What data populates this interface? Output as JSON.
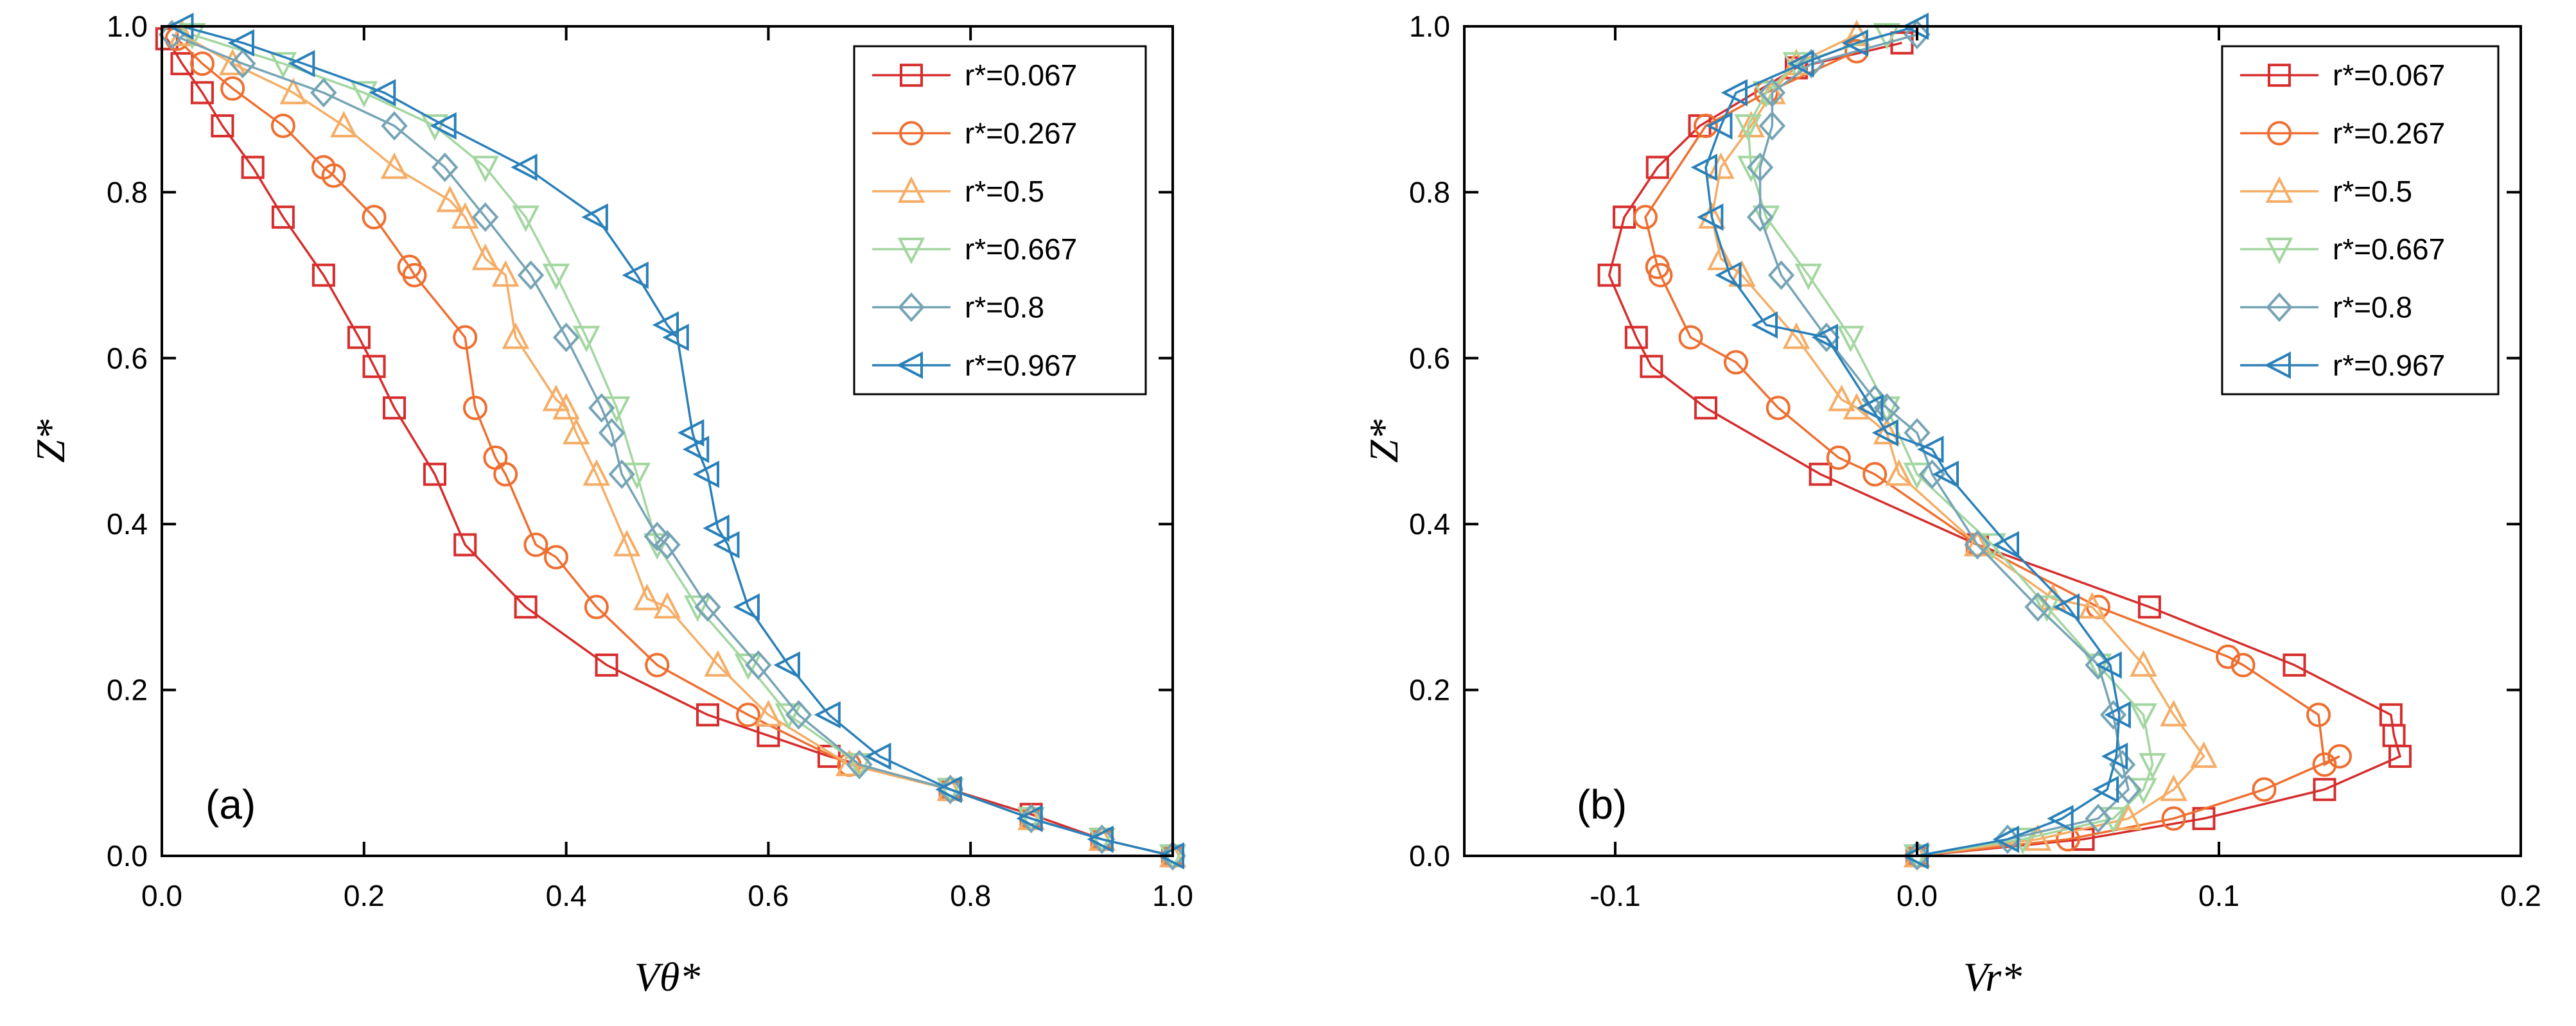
{
  "chart_data": [
    {
      "type": "line",
      "panel_label": "(a)",
      "xlabel": "Vθ*",
      "ylabel": "Z*",
      "xlim": [
        0.0,
        1.0
      ],
      "ylim": [
        0.0,
        1.0
      ],
      "xticks": [
        "0.0",
        "0.2",
        "0.4",
        "0.6",
        "0.8",
        "1.0"
      ],
      "yticks": [
        "0.0",
        "0.2",
        "0.4",
        "0.6",
        "0.8",
        "1.0"
      ],
      "grid": false,
      "legend_position": "top-right",
      "series": [
        {
          "name": "r*=0.067",
          "color": "#d62d2d",
          "marker": "square",
          "x": [
            1.0,
            0.93,
            0.86,
            0.78,
            0.66,
            0.6,
            0.54,
            0.44,
            0.36,
            0.3,
            0.27,
            0.23,
            0.21,
            0.195,
            0.16,
            0.12,
            0.09,
            0.06,
            0.04,
            0.02,
            0.005
          ],
          "y": [
            0.0,
            0.02,
            0.05,
            0.08,
            0.12,
            0.145,
            0.17,
            0.23,
            0.3,
            0.375,
            0.46,
            0.54,
            0.59,
            0.625,
            0.7,
            0.77,
            0.83,
            0.88,
            0.92,
            0.955,
            0.985
          ]
        },
        {
          "name": "r*=0.267",
          "color": "#ee6f31",
          "marker": "circle",
          "x": [
            1.0,
            0.93,
            0.86,
            0.78,
            0.68,
            0.58,
            0.49,
            0.43,
            0.39,
            0.37,
            0.34,
            0.33,
            0.31,
            0.3,
            0.25,
            0.245,
            0.21,
            0.17,
            0.16,
            0.12,
            0.07,
            0.04,
            0.015
          ],
          "y": [
            0.0,
            0.02,
            0.045,
            0.08,
            0.11,
            0.17,
            0.23,
            0.3,
            0.36,
            0.375,
            0.46,
            0.48,
            0.54,
            0.625,
            0.7,
            0.71,
            0.77,
            0.82,
            0.83,
            0.88,
            0.925,
            0.955,
            0.985
          ]
        },
        {
          "name": "r*=0.5",
          "color": "#f5ad66",
          "marker": "triangle-up",
          "x": [
            1.0,
            0.93,
            0.86,
            0.78,
            0.68,
            0.6,
            0.55,
            0.5,
            0.48,
            0.46,
            0.43,
            0.41,
            0.4,
            0.39,
            0.35,
            0.34,
            0.32,
            0.3,
            0.285,
            0.23,
            0.18,
            0.13,
            0.07,
            0.02
          ],
          "y": [
            0.0,
            0.02,
            0.045,
            0.08,
            0.11,
            0.17,
            0.23,
            0.3,
            0.31,
            0.375,
            0.46,
            0.51,
            0.54,
            0.55,
            0.625,
            0.7,
            0.72,
            0.77,
            0.79,
            0.83,
            0.88,
            0.92,
            0.955,
            0.99
          ]
        },
        {
          "name": "r*=0.667",
          "color": "#a3d6a0",
          "marker": "triangle-down",
          "x": [
            1.0,
            0.93,
            0.86,
            0.78,
            0.69,
            0.62,
            0.58,
            0.53,
            0.49,
            0.47,
            0.45,
            0.42,
            0.39,
            0.36,
            0.32,
            0.27,
            0.2,
            0.12,
            0.03
          ],
          "y": [
            0.0,
            0.02,
            0.045,
            0.08,
            0.11,
            0.17,
            0.23,
            0.3,
            0.375,
            0.46,
            0.54,
            0.625,
            0.7,
            0.77,
            0.83,
            0.88,
            0.92,
            0.955,
            0.99
          ]
        },
        {
          "name": "r*=0.8",
          "color": "#76a4b5",
          "marker": "diamond",
          "x": [
            1.0,
            0.93,
            0.86,
            0.78,
            0.69,
            0.63,
            0.59,
            0.54,
            0.5,
            0.49,
            0.455,
            0.445,
            0.435,
            0.4,
            0.365,
            0.32,
            0.28,
            0.23,
            0.16,
            0.08,
            0.01
          ],
          "y": [
            0.0,
            0.02,
            0.045,
            0.08,
            0.11,
            0.17,
            0.23,
            0.3,
            0.375,
            0.385,
            0.46,
            0.51,
            0.54,
            0.625,
            0.7,
            0.77,
            0.83,
            0.88,
            0.92,
            0.955,
            0.99
          ]
        },
        {
          "name": "r*=0.967",
          "color": "#2a80b9",
          "marker": "triangle-left",
          "x": [
            1.0,
            0.93,
            0.86,
            0.78,
            0.71,
            0.66,
            0.62,
            0.58,
            0.56,
            0.55,
            0.54,
            0.53,
            0.525,
            0.51,
            0.5,
            0.47,
            0.43,
            0.36,
            0.28,
            0.22,
            0.14,
            0.08,
            0.02
          ],
          "y": [
            0.0,
            0.02,
            0.045,
            0.08,
            0.12,
            0.17,
            0.23,
            0.3,
            0.375,
            0.395,
            0.46,
            0.49,
            0.51,
            0.625,
            0.64,
            0.7,
            0.77,
            0.83,
            0.88,
            0.92,
            0.955,
            0.98,
            1.0
          ]
        }
      ]
    },
    {
      "type": "line",
      "panel_label": "(b)",
      "xlabel": "Vr*",
      "ylabel": "Z*",
      "xlim": [
        -0.15,
        0.2
      ],
      "ylim": [
        0.0,
        1.0
      ],
      "xticks": [
        "-0.1",
        "0.0",
        "0.1",
        "0.2"
      ],
      "yticks": [
        "0.0",
        "0.2",
        "0.4",
        "0.6",
        "0.8",
        "1.0"
      ],
      "grid": false,
      "legend_position": "top-right",
      "series": [
        {
          "name": "r*=0.067",
          "color": "#d62d2d",
          "marker": "square",
          "x": [
            0.0,
            0.055,
            0.095,
            0.135,
            0.16,
            0.158,
            0.157,
            0.125,
            0.077,
            0.02,
            -0.032,
            -0.07,
            -0.088,
            -0.093,
            -0.102,
            -0.097,
            -0.086,
            -0.072,
            -0.04,
            -0.005
          ],
          "y": [
            0.0,
            0.02,
            0.045,
            0.08,
            0.12,
            0.145,
            0.17,
            0.23,
            0.3,
            0.375,
            0.46,
            0.54,
            0.59,
            0.625,
            0.7,
            0.77,
            0.83,
            0.88,
            0.95,
            0.98
          ]
        },
        {
          "name": "r*=0.267",
          "color": "#ee6f31",
          "marker": "circle",
          "x": [
            0.0,
            0.05,
            0.085,
            0.115,
            0.14,
            0.135,
            0.133,
            0.108,
            0.103,
            0.06,
            0.02,
            -0.014,
            -0.026,
            -0.046,
            -0.06,
            -0.075,
            -0.085,
            -0.086,
            -0.09,
            -0.07,
            -0.05,
            -0.02
          ],
          "y": [
            0.0,
            0.02,
            0.045,
            0.08,
            0.12,
            0.11,
            0.17,
            0.23,
            0.24,
            0.3,
            0.375,
            0.46,
            0.48,
            0.54,
            0.595,
            0.625,
            0.7,
            0.71,
            0.77,
            0.88,
            0.92,
            0.97
          ]
        },
        {
          "name": "r*=0.5",
          "color": "#f5ad66",
          "marker": "triangle-up",
          "x": [
            0.0,
            0.04,
            0.07,
            0.085,
            0.095,
            0.085,
            0.075,
            0.058,
            0.045,
            0.02,
            -0.006,
            -0.01,
            -0.02,
            -0.025,
            -0.04,
            -0.058,
            -0.065,
            -0.068,
            -0.065,
            -0.055,
            -0.048,
            -0.04,
            -0.02
          ],
          "y": [
            0.0,
            0.02,
            0.045,
            0.08,
            0.12,
            0.17,
            0.23,
            0.3,
            0.31,
            0.375,
            0.46,
            0.51,
            0.54,
            0.55,
            0.625,
            0.7,
            0.72,
            0.77,
            0.83,
            0.88,
            0.92,
            0.955,
            0.99
          ]
        },
        {
          "name": "r*=0.667",
          "color": "#a3d6a0",
          "marker": "triangle-down",
          "x": [
            0.0,
            0.035,
            0.065,
            0.075,
            0.078,
            0.075,
            0.06,
            0.043,
            0.025,
            0.0,
            -0.01,
            -0.022,
            -0.036,
            -0.05,
            -0.055,
            -0.056,
            -0.05,
            -0.04,
            -0.01
          ],
          "y": [
            0.0,
            0.02,
            0.045,
            0.08,
            0.11,
            0.17,
            0.23,
            0.3,
            0.375,
            0.46,
            0.54,
            0.625,
            0.7,
            0.77,
            0.83,
            0.88,
            0.92,
            0.955,
            0.99
          ]
        },
        {
          "name": "r*=0.8",
          "color": "#76a4b5",
          "marker": "diamond",
          "x": [
            0.0,
            0.03,
            0.06,
            0.07,
            0.068,
            0.065,
            0.06,
            0.04,
            0.02,
            0.005,
            0.0,
            -0.01,
            -0.014,
            -0.03,
            -0.045,
            -0.052,
            -0.052,
            -0.048,
            -0.048,
            -0.035,
            0.0
          ],
          "y": [
            0.0,
            0.02,
            0.045,
            0.08,
            0.11,
            0.17,
            0.23,
            0.3,
            0.375,
            0.46,
            0.51,
            0.54,
            0.55,
            0.625,
            0.7,
            0.77,
            0.83,
            0.88,
            0.92,
            0.955,
            0.99
          ]
        },
        {
          "name": "r*=0.967",
          "color": "#2a80b9",
          "marker": "triangle-left",
          "x": [
            0.0,
            0.03,
            0.048,
            0.063,
            0.066,
            0.067,
            0.064,
            0.05,
            0.03,
            0.01,
            0.005,
            -0.01,
            -0.015,
            -0.03,
            -0.05,
            -0.062,
            -0.068,
            -0.07,
            -0.065,
            -0.06,
            -0.038,
            -0.02,
            0.0
          ],
          "y": [
            0.0,
            0.02,
            0.045,
            0.08,
            0.12,
            0.17,
            0.23,
            0.3,
            0.375,
            0.46,
            0.49,
            0.51,
            0.54,
            0.625,
            0.64,
            0.7,
            0.77,
            0.83,
            0.88,
            0.92,
            0.955,
            0.98,
            1.0
          ]
        }
      ]
    }
  ]
}
